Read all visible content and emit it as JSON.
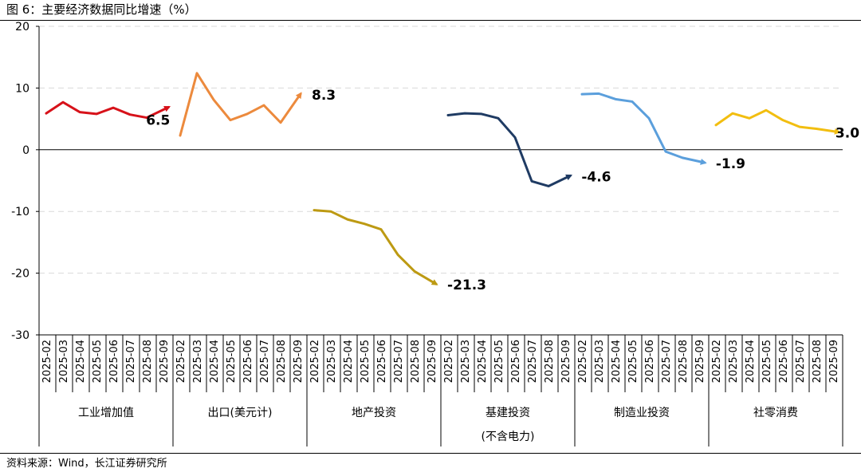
{
  "figure": {
    "title": "图 6：主要经济数据同比增速（%）",
    "source": "资料来源：Wind，长江证券研究所"
  },
  "chart_data": {
    "type": "line",
    "title": "主要经济数据同比增速（%）",
    "xlabel": "",
    "ylabel": "%",
    "ylim": [
      -30,
      20
    ],
    "yticks": [
      20,
      10,
      0,
      -10,
      -20,
      -30
    ],
    "grid": true,
    "categories": [
      "2025-02",
      "2025-03",
      "2025-04",
      "2025-05",
      "2025-06",
      "2025-07",
      "2025-08",
      "2025-09"
    ],
    "series": [
      {
        "name": "工业增加值",
        "group_label": [
          "工业增加值"
        ],
        "color": "#d7121a",
        "values": [
          5.9,
          7.7,
          6.1,
          5.8,
          6.8,
          5.7,
          5.2,
          6.5
        ],
        "end_label": "6.5"
      },
      {
        "name": "出口(美元计)",
        "group_label": [
          "出口(美元计)"
        ],
        "color": "#ec8a3d",
        "values": [
          2.3,
          12.4,
          8.1,
          4.8,
          5.8,
          7.2,
          4.4,
          8.3
        ],
        "end_label": "8.3"
      },
      {
        "name": "地产投资",
        "group_label": [
          "地产投资"
        ],
        "color": "#bd9a13",
        "values": [
          -9.8,
          -10.0,
          -11.3,
          -12.0,
          -12.9,
          -17.0,
          -19.7,
          -21.3
        ],
        "end_label": "-21.3"
      },
      {
        "name": "基建投资(不含电力)",
        "group_label": [
          "基建投资",
          "(不含电力)"
        ],
        "color": "#1f3b63",
        "values": [
          5.6,
          5.9,
          5.8,
          5.1,
          2.0,
          -5.1,
          -5.9,
          -4.6
        ],
        "end_label": "-4.6"
      },
      {
        "name": "制造业投资",
        "group_label": [
          "制造业投资"
        ],
        "color": "#5b9fdc",
        "values": [
          9.0,
          9.1,
          8.2,
          7.8,
          5.1,
          -0.3,
          -1.3,
          -1.9
        ],
        "end_label": "-1.9"
      },
      {
        "name": "社零消费",
        "group_label": [
          "社零消费"
        ],
        "color": "#f2be10",
        "values": [
          4.0,
          5.9,
          5.1,
          6.4,
          4.8,
          3.7,
          3.4,
          3.0
        ],
        "end_label": "3.0"
      }
    ]
  }
}
